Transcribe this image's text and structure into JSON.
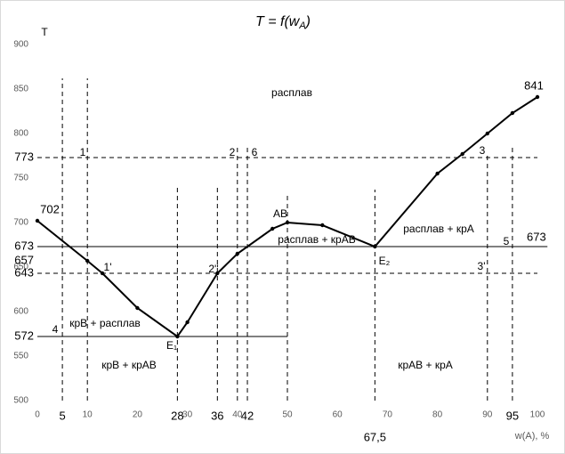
{
  "chart_data": {
    "type": "line",
    "title": [
      "T = f(w",
      "A",
      ")"
    ],
    "y_label": "T",
    "x_label": "w(A), %",
    "xlim": [
      0,
      100
    ],
    "xticks": [
      0,
      10,
      20,
      30,
      40,
      50,
      60,
      70,
      80,
      90,
      100
    ],
    "ylim": [
      500,
      900
    ],
    "yticks": [
      500,
      550,
      600,
      650,
      700,
      750,
      800,
      850,
      900
    ],
    "series": [
      {
        "color": "#000000",
        "x": [
          0,
          10,
          13,
          20,
          28,
          30,
          36,
          40,
          47,
          50,
          57,
          67.5,
          80,
          85,
          90,
          95,
          100
        ],
        "values": [
          702,
          657,
          643,
          604,
          572,
          588,
          643,
          665,
          693,
          700,
          697,
          673,
          755,
          777,
          800,
          823,
          841
        ],
        "value_labels": [
          "702",
          null,
          null,
          null,
          null,
          null,
          null,
          null,
          null,
          null,
          null,
          null,
          null,
          null,
          null,
          null,
          "841"
        ]
      }
    ],
    "marked_x": [
      5,
      28,
      36,
      42,
      {
        "value": 67.5,
        "label": "67,5"
      },
      95
    ],
    "marked_y": [
      773,
      673,
      657,
      643,
      572
    ],
    "hlines": [
      {
        "value": 773,
        "x": [
          0,
          100
        ],
        "dashed": true
      },
      {
        "value": 673,
        "x": [
          0,
          102
        ],
        "dashed": false
      },
      {
        "value": 643,
        "x": [
          0,
          100
        ],
        "dashed": true
      },
      {
        "value": 572,
        "x": [
          0,
          50
        ],
        "dashed": false
      }
    ],
    "right_label": "673",
    "vlines": [
      {
        "x": 5,
        "top": 862
      },
      {
        "x": 10,
        "top": 862
      },
      {
        "x": 28,
        "top": 743
      },
      {
        "x": 36,
        "top": 741
      },
      {
        "x": 40,
        "top": 785
      },
      {
        "x": 42,
        "top": 785
      },
      {
        "x": 50,
        "top": 730
      },
      {
        "x": 67.5,
        "top": 737
      },
      {
        "x": 90,
        "top": 775
      },
      {
        "x": 95,
        "top": 787
      }
    ],
    "point_labels": [
      "1",
      "2",
      "6",
      "3",
      "1'",
      "2''",
      "3'",
      "4",
      "5",
      "E₁",
      "E₂",
      "AB"
    ],
    "region_labels": [
      "расплав",
      "расплав + крАВ",
      "расплав + крА",
      "крВ + расплав",
      "крВ + крАВ",
      "крАВ + крА"
    ]
  }
}
